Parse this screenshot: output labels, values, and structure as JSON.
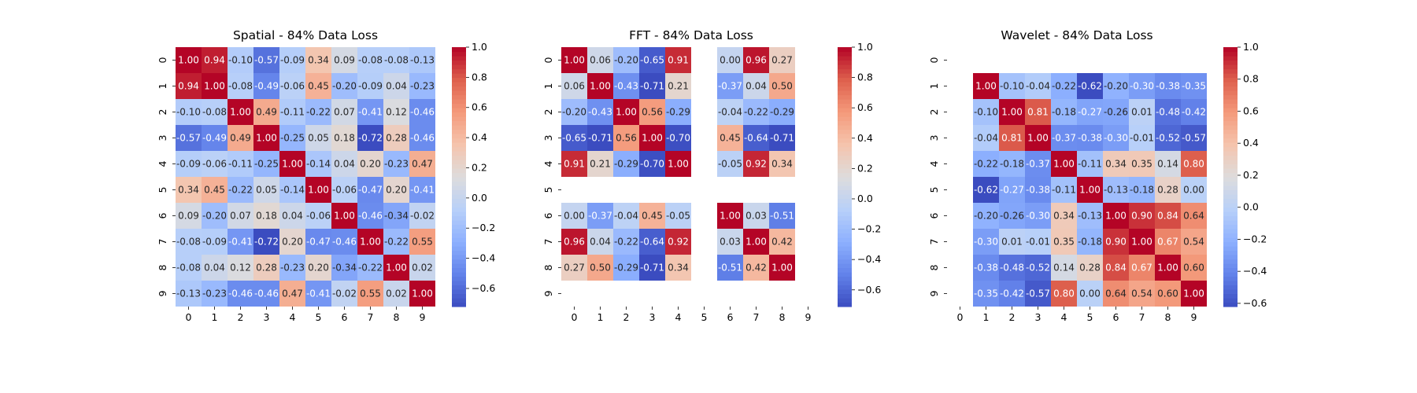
{
  "chart_data": [
    {
      "type": "heatmap",
      "title": "Spatial - 84% Data Loss",
      "x": [
        "0",
        "1",
        "2",
        "3",
        "4",
        "5",
        "6",
        "7",
        "8",
        "9"
      ],
      "y": [
        "0",
        "1",
        "2",
        "3",
        "4",
        "5",
        "6",
        "7",
        "8",
        "9"
      ],
      "values": [
        [
          1.0,
          0.94,
          -0.1,
          -0.57,
          -0.09,
          0.34,
          0.09,
          -0.08,
          -0.08,
          -0.13
        ],
        [
          0.94,
          1.0,
          -0.08,
          -0.49,
          -0.06,
          0.45,
          -0.2,
          -0.09,
          0.04,
          -0.23
        ],
        [
          -0.1,
          -0.08,
          1.0,
          0.49,
          -0.11,
          -0.22,
          0.07,
          -0.41,
          0.12,
          -0.46
        ],
        [
          -0.57,
          -0.49,
          0.49,
          1.0,
          -0.25,
          0.05,
          0.18,
          -0.72,
          0.28,
          -0.46
        ],
        [
          -0.09,
          -0.06,
          -0.11,
          -0.25,
          1.0,
          -0.14,
          0.04,
          0.2,
          -0.23,
          0.47
        ],
        [
          0.34,
          0.45,
          -0.22,
          0.05,
          -0.14,
          1.0,
          -0.06,
          -0.47,
          0.2,
          -0.41
        ],
        [
          0.09,
          -0.2,
          0.07,
          0.18,
          0.04,
          -0.06,
          1.0,
          -0.46,
          -0.34,
          -0.02
        ],
        [
          -0.08,
          -0.09,
          -0.41,
          -0.72,
          0.2,
          -0.47,
          -0.46,
          1.0,
          -0.22,
          0.55
        ],
        [
          -0.08,
          0.04,
          0.12,
          0.28,
          -0.23,
          0.2,
          -0.34,
          -0.22,
          1.0,
          0.02
        ],
        [
          -0.13,
          -0.23,
          -0.46,
          -0.46,
          0.47,
          -0.41,
          -0.02,
          0.55,
          0.02,
          1.0
        ]
      ],
      "colorbar": {
        "range": [
          -0.72,
          1.0
        ],
        "ticks": [
          -0.6,
          -0.4,
          -0.2,
          0.0,
          0.2,
          0.4,
          0.6,
          0.8,
          1.0
        ]
      },
      "colormap": "coolwarm",
      "annotation_format": "2 decimals"
    },
    {
      "type": "heatmap",
      "title": "FFT - 84% Data Loss",
      "x": [
        "0",
        "1",
        "2",
        "3",
        "4",
        "5",
        "6",
        "7",
        "8",
        "9"
      ],
      "y": [
        "0",
        "1",
        "2",
        "3",
        "4",
        "5",
        "6",
        "7",
        "8",
        "9"
      ],
      "values": [
        [
          1.0,
          0.06,
          -0.2,
          -0.65,
          0.91,
          null,
          -0.0,
          0.96,
          0.27,
          null
        ],
        [
          0.06,
          1.0,
          -0.43,
          -0.71,
          0.21,
          null,
          -0.37,
          0.04,
          0.5,
          null
        ],
        [
          -0.2,
          -0.43,
          1.0,
          0.56,
          -0.29,
          null,
          -0.04,
          -0.22,
          -0.29,
          null
        ],
        [
          -0.65,
          -0.71,
          0.56,
          1.0,
          -0.7,
          null,
          0.45,
          -0.64,
          -0.71,
          null
        ],
        [
          0.91,
          0.21,
          -0.29,
          -0.7,
          1.0,
          null,
          -0.05,
          0.92,
          0.34,
          null
        ],
        [
          null,
          null,
          null,
          null,
          null,
          null,
          null,
          null,
          null,
          null
        ],
        [
          -0.0,
          -0.37,
          -0.04,
          0.45,
          -0.05,
          null,
          1.0,
          0.03,
          -0.51,
          null
        ],
        [
          0.96,
          0.04,
          -0.22,
          -0.64,
          0.92,
          null,
          0.03,
          1.0,
          0.42,
          null
        ],
        [
          0.27,
          0.5,
          -0.29,
          -0.71,
          0.34,
          null,
          -0.51,
          0.42,
          1.0,
          null
        ],
        [
          null,
          null,
          null,
          null,
          null,
          null,
          null,
          null,
          null,
          null
        ]
      ],
      "colorbar": {
        "range": [
          -0.71,
          1.0
        ],
        "ticks": [
          -0.6,
          -0.4,
          -0.2,
          0.0,
          0.2,
          0.4,
          0.6,
          0.8,
          1.0
        ]
      },
      "colormap": "coolwarm",
      "annotation_format": "2 decimals"
    },
    {
      "type": "heatmap",
      "title": "Wavelet - 84% Data Loss",
      "x": [
        "0",
        "1",
        "2",
        "3",
        "4",
        "5",
        "6",
        "7",
        "8",
        "9"
      ],
      "y": [
        "0",
        "1",
        "2",
        "3",
        "4",
        "5",
        "6",
        "7",
        "8",
        "9"
      ],
      "values": [
        [
          null,
          null,
          null,
          null,
          null,
          null,
          null,
          null,
          null,
          null
        ],
        [
          null,
          1.0,
          -0.1,
          -0.04,
          -0.22,
          -0.62,
          -0.2,
          -0.3,
          -0.38,
          -0.35
        ],
        [
          null,
          -0.1,
          1.0,
          0.81,
          -0.18,
          -0.27,
          -0.26,
          0.01,
          -0.48,
          -0.42
        ],
        [
          null,
          -0.04,
          0.81,
          1.0,
          -0.37,
          -0.38,
          -0.3,
          -0.01,
          -0.52,
          -0.57
        ],
        [
          null,
          -0.22,
          -0.18,
          -0.37,
          1.0,
          -0.11,
          0.34,
          0.35,
          0.14,
          0.8
        ],
        [
          null,
          -0.62,
          -0.27,
          -0.38,
          -0.11,
          1.0,
          -0.13,
          -0.18,
          0.28,
          0.0
        ],
        [
          null,
          -0.2,
          -0.26,
          -0.3,
          0.34,
          -0.13,
          1.0,
          0.9,
          0.84,
          0.64
        ],
        [
          null,
          -0.3,
          0.01,
          -0.01,
          0.35,
          -0.18,
          0.9,
          1.0,
          0.67,
          0.54
        ],
        [
          null,
          -0.38,
          -0.48,
          -0.52,
          0.14,
          0.28,
          0.84,
          0.67,
          1.0,
          0.6
        ],
        [
          null,
          -0.35,
          -0.42,
          -0.57,
          0.8,
          0.0,
          0.64,
          0.54,
          0.6,
          1.0
        ]
      ],
      "colorbar": {
        "range": [
          -0.62,
          1.0
        ],
        "ticks": [
          -0.6,
          -0.4,
          -0.2,
          0.0,
          0.2,
          0.4,
          0.6,
          0.8,
          1.0
        ]
      },
      "colormap": "coolwarm",
      "annotation_format": "2 decimals"
    }
  ]
}
